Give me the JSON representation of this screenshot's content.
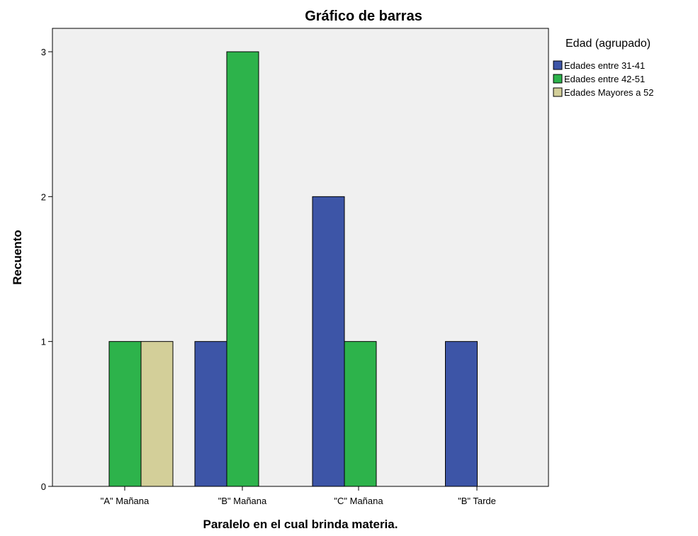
{
  "chart_data": {
    "type": "bar",
    "title": "Gráfico de barras",
    "xlabel": "Paralelo en el cual brinda materia.",
    "ylabel": "Recuento",
    "categories": [
      "\"A\" Mañana",
      "\"B\" Mañana",
      "\"C\" Mañana",
      "\"B\" Tarde"
    ],
    "series": [
      {
        "name": "Edades entre 31-41",
        "values": [
          0,
          1,
          2,
          1
        ],
        "color": "#3d55a7"
      },
      {
        "name": "Edades entre 42-51",
        "values": [
          1,
          3,
          1,
          0
        ],
        "color": "#2db34b"
      },
      {
        "name": "Edades Mayores a 52",
        "values": [
          1,
          0,
          0,
          0
        ],
        "color": "#d3cf99"
      }
    ],
    "ylim": [
      0,
      3
    ],
    "yticks": [
      0,
      1,
      2,
      3
    ],
    "legend_title": "Edad (agrupado)",
    "legend_position": "right",
    "grid": false,
    "plot_background": "#f0f0f0"
  }
}
